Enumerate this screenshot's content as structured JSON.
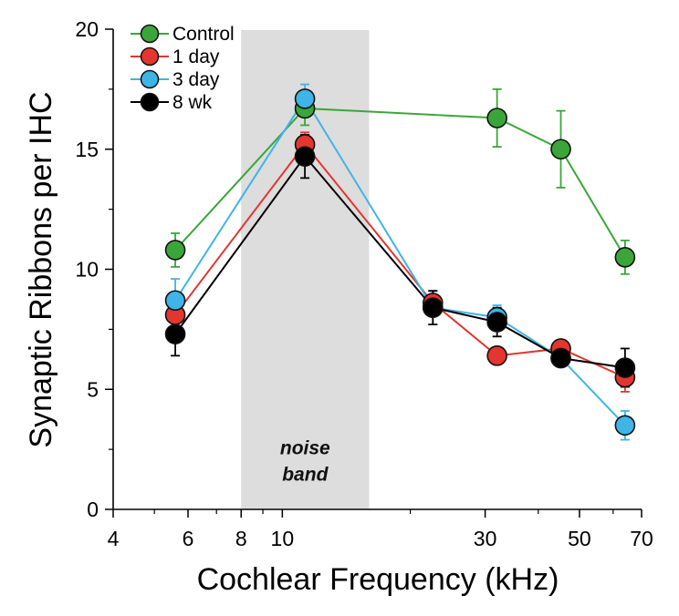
{
  "chart_data": {
    "type": "line",
    "xlabel": "Cochlear Frequency (kHz)",
    "ylabel": "Synaptic Ribbons per IHC",
    "x_scale": "log",
    "xlim": [
      4,
      70
    ],
    "ylim": [
      0,
      20
    ],
    "x_ticks": [
      4,
      6,
      8,
      10,
      30,
      50,
      70
    ],
    "x_tick_labels": [
      "4",
      "6",
      "8",
      "10",
      "30",
      "50",
      "70"
    ],
    "y_ticks": [
      0,
      5,
      10,
      15,
      20
    ],
    "y_tick_labels": [
      "0",
      "5",
      "10",
      "15",
      "20"
    ],
    "x": [
      5.6,
      11.3,
      22.6,
      32,
      45.2,
      64
    ],
    "shaded_band": {
      "x_range": [
        8,
        16
      ],
      "color": "#dddddd",
      "label_line1": "noise",
      "label_line2": "band"
    },
    "legend_position": "top-left",
    "grid": false,
    "series": [
      {
        "name": "Control",
        "color": "#3aa63a",
        "values": [
          10.8,
          16.7,
          null,
          16.3,
          15.0,
          10.5
        ],
        "errors": [
          0.7,
          0.7,
          null,
          1.2,
          1.6,
          0.7
        ]
      },
      {
        "name": "1 day",
        "color": "#e2362f",
        "values": [
          8.1,
          15.2,
          8.6,
          6.4,
          6.7,
          5.5
        ],
        "errors": [
          0.9,
          0.5,
          0.5,
          0.0,
          0.3,
          0.6
        ]
      },
      {
        "name": "3 day",
        "color": "#3fb4e6",
        "values": [
          8.7,
          17.1,
          8.4,
          8.0,
          6.3,
          3.5
        ],
        "errors": [
          0.9,
          0.6,
          0.7,
          0.5,
          0.3,
          0.6
        ]
      },
      {
        "name": "8 wk",
        "color": "#000000",
        "values": [
          7.3,
          14.7,
          8.4,
          7.8,
          6.3,
          5.9
        ],
        "errors": [
          0.9,
          0.9,
          0.7,
          0.6,
          0.3,
          0.8
        ]
      }
    ]
  }
}
